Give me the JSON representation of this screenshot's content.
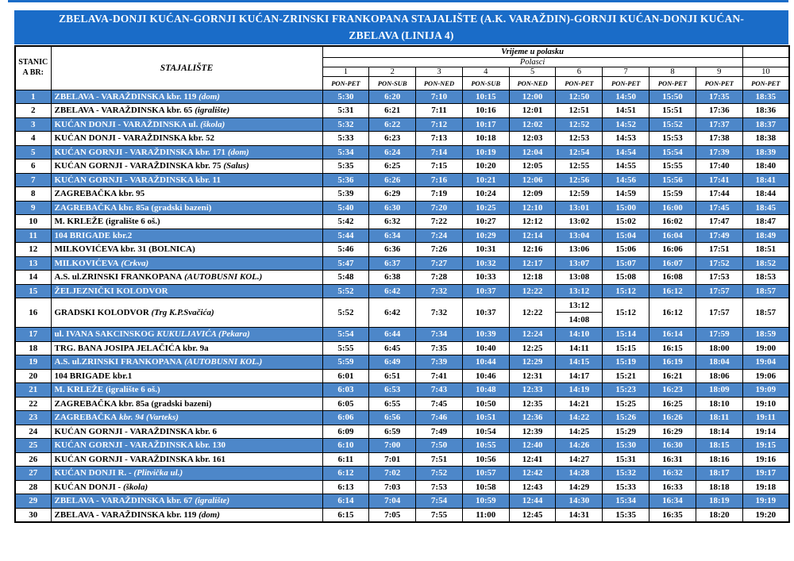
{
  "colors": {
    "title_blue": "#1a6cc8",
    "row_blue": "#4d87c9"
  },
  "title": {
    "line1": "ZBELAVA-DONJI KUĆAN-GORNJI KUĆAN-ZRINSKI FRANKOPANA STAJALIŠTE (A.K. VARAŽDIN)-GORNJI KUĆAN-DONJI KUĆAN-",
    "line2": "ZBELAVA (LINIJA 4)"
  },
  "header": {
    "station_no_label": "STANICA BR:",
    "stop_label": "STAJALIŠTE",
    "time_group_label": "Vrijeme u polasku",
    "departures_label": "Polasci",
    "departure_numbers": [
      "1",
      "2",
      "3",
      "4",
      "5",
      "6",
      "7",
      "8",
      "9",
      "10"
    ],
    "day_types": [
      "PON-PET",
      "PON-SUB",
      "PON-NED",
      "PON-SUB",
      "PON-NED",
      "PON-PET",
      "PON-PET",
      "PON-PET",
      "PON-PET",
      "PON-PET"
    ]
  },
  "table": {
    "rows": [
      {
        "no": "1",
        "name": "ZBELAVA - VARAŽDINSKA kbr. 119",
        "note": "(dom)",
        "times": [
          "5:30",
          "6:20",
          "7:10",
          "10:15",
          "12:00",
          "12:50",
          "14:50",
          "15:50",
          "17:35",
          "18:35"
        ]
      },
      {
        "no": "2",
        "name": "ZBELAVA - VARAŽDINSKA kbr. 65",
        "note": "(igralište)",
        "times": [
          "5:31",
          "6:21",
          "7:11",
          "10:16",
          "12:01",
          "12:51",
          "14:51",
          "15:51",
          "17:36",
          "18:36"
        ]
      },
      {
        "no": "3",
        "name": "KUĆAN DONJI - VARAŽDINSKA ul.",
        "note": "(škola)",
        "times": [
          "5:32",
          "6:22",
          "7:12",
          "10:17",
          "12:02",
          "12:52",
          "14:52",
          "15:52",
          "17:37",
          "18:37"
        ]
      },
      {
        "no": "4",
        "name": "KUĆAN DONJI - VARAŽDINSKA kbr. 52",
        "note": "",
        "times": [
          "5:33",
          "6:23",
          "7:13",
          "10:18",
          "12:03",
          "12:53",
          "14:53",
          "15:53",
          "17:38",
          "18:38"
        ]
      },
      {
        "no": "5",
        "name": "KUĆAN  GORNJI -  VARAŽDINSKA kbr. 171",
        "note": "(dom)",
        "times": [
          "5:34",
          "6:24",
          "7:14",
          "10:19",
          "12:04",
          "12:54",
          "14:54",
          "15:54",
          "17:39",
          "18:39"
        ]
      },
      {
        "no": "6",
        "name": "KUĆAN GORNJI - VARAŽDINSKA kbr. 75",
        "note": "(Salus)",
        "times": [
          "5:35",
          "6:25",
          "7:15",
          "10:20",
          "12:05",
          "12:55",
          "14:55",
          "15:55",
          "17:40",
          "18:40"
        ]
      },
      {
        "no": "7",
        "name": "KUĆAN GORNJI - VARAŽDINSKA kbr. 11",
        "note": "",
        "times": [
          "5:36",
          "6:26",
          "7:16",
          "10:21",
          "12:06",
          "12:56",
          "14:56",
          "15:56",
          "17:41",
          "18:41"
        ]
      },
      {
        "no": "8",
        "name": "ZAGREBAČKA kbr. 95",
        "note": "",
        "times": [
          "5:39",
          "6:29",
          "7:19",
          "10:24",
          "12:09",
          "12:59",
          "14:59",
          "15:59",
          "17:44",
          "18:44"
        ]
      },
      {
        "no": "9",
        "name": "ZAGREBAČKA kbr. 85a (gradski bazeni)",
        "note": "",
        "times": [
          "5:40",
          "6:30",
          "7:20",
          "10:25",
          "12:10",
          "13:01",
          "15:00",
          "16:00",
          "17:45",
          "18:45"
        ]
      },
      {
        "no": "10",
        "name": "M. KRLEŽE  (igralište 6 oš.)",
        "note": "",
        "times": [
          "5:42",
          "6:32",
          "7:22",
          "10:27",
          "12:12",
          "13:02",
          "15:02",
          "16:02",
          "17:47",
          "18:47"
        ]
      },
      {
        "no": "11",
        "name": "104 BRIGADE kbr.2",
        "note": "",
        "times": [
          "5:44",
          "6:34",
          "7:24",
          "10:29",
          "12:14",
          "13:04",
          "15:04",
          "16:04",
          "17:49",
          "18:49"
        ]
      },
      {
        "no": "12",
        "name": "MILKOVIĆEVA kbr. 31 (BOLNICA)",
        "note": "",
        "times": [
          "5:46",
          "6:36",
          "7:26",
          "10:31",
          "12:16",
          "13:06",
          "15:06",
          "16:06",
          "17:51",
          "18:51"
        ]
      },
      {
        "no": "13",
        "name": "MILKOVIĆEVA",
        "note": "(Crkva)",
        "times": [
          "5:47",
          "6:37",
          "7:27",
          "10:32",
          "12:17",
          "13:07",
          "15:07",
          "16:07",
          "17:52",
          "18:52"
        ]
      },
      {
        "no": "14",
        "name": "A.S. ul.ZRINSKI FRANKOPANA",
        "note": "(AUTOBUSNI KOL.)",
        "times": [
          "5:48",
          "6:38",
          "7:28",
          "10:33",
          "12:18",
          "13:08",
          "15:08",
          "16:08",
          "17:53",
          "18:53"
        ]
      },
      {
        "no": "15",
        "name": "ŽELJEZNIČKI KOLODVOR",
        "note": "",
        "times": [
          "5:52",
          "6:42",
          "7:32",
          "10:37",
          "12:22",
          "13:12",
          "15:12",
          "16:12",
          "17:57",
          "18:57"
        ]
      },
      {
        "no": "16",
        "name": "GRADSKI KOLODVOR",
        "note": "(Trg K.P.Svačića)",
        "tall": true,
        "times": [
          "5:52",
          "6:42",
          "7:32",
          "10:37",
          "12:22",
          [
            "13:12",
            "14:08"
          ],
          "15:12",
          "16:12",
          "17:57",
          "18:57"
        ]
      },
      {
        "no": "17",
        "name": "ul. IVANA SAKCINSKOG",
        "note": "KUKULJAVIĆA (Pekara)",
        "times": [
          "5:54",
          "6:44",
          "7:34",
          "10:39",
          "12:24",
          "14:10",
          "15:14",
          "16:14",
          "17:59",
          "18:59"
        ]
      },
      {
        "no": "18",
        "name": "TRG. BANA JOSIPA JELAČIĆA kbr. 9a",
        "note": "",
        "times": [
          "5:55",
          "6:45",
          "7:35",
          "10:40",
          "12:25",
          "14:11",
          "15:15",
          "16:15",
          "18:00",
          "19:00"
        ]
      },
      {
        "no": "19",
        "name": "A.S. ul.ZRINSKI FRANKOPANA",
        "note": "(AUTOBUSNI KOL.)",
        "times": [
          "5:59",
          "6:49",
          "7:39",
          "10:44",
          "12:29",
          "14:15",
          "15:19",
          "16:19",
          "18:04",
          "19:04"
        ]
      },
      {
        "no": "20",
        "name": "104 BRIGADE kbr.1",
        "note": "",
        "times": [
          "6:01",
          "6:51",
          "7:41",
          "10:46",
          "12:31",
          "14:17",
          "15:21",
          "16:21",
          "18:06",
          "19:06"
        ]
      },
      {
        "no": "21",
        "name": "M. KRLEŽE  (igralište 6 oš.)",
        "note": "",
        "times": [
          "6:03",
          "6:53",
          "7:43",
          "10:48",
          "12:33",
          "14:19",
          "15:23",
          "16:23",
          "18:09",
          "19:09"
        ]
      },
      {
        "no": "22",
        "name": "ZAGREBAČKA kbr. 85a (gradski bazeni)",
        "note": "",
        "times": [
          "6:05",
          "6:55",
          "7:45",
          "10:50",
          "12:35",
          "14:21",
          "15:25",
          "16:25",
          "18:10",
          "19:10"
        ]
      },
      {
        "no": "23",
        "name": "ZAGREBAČKA",
        "note": "kbr. 94 (Varteks)",
        "times": [
          "6:06",
          "6:56",
          "7:46",
          "10:51",
          "12:36",
          "14:22",
          "15:26",
          "16:26",
          "18:11",
          "19:11"
        ]
      },
      {
        "no": "24",
        "name": "KUĆAN GORNJI - VARAŽDINSKA kbr. 6",
        "note": "",
        "times": [
          "6:09",
          "6:59",
          "7:49",
          "10:54",
          "12:39",
          "14:25",
          "15:29",
          "16:29",
          "18:14",
          "19:14"
        ]
      },
      {
        "no": "25",
        "name": "KUĆAN GORNJI -  VARAŽDINSKA kbr. 130",
        "note": "",
        "times": [
          "6:10",
          "7:00",
          "7:50",
          "10:55",
          "12:40",
          "14:26",
          "15:30",
          "16:30",
          "18:15",
          "19:15"
        ]
      },
      {
        "no": "26",
        "name": "KUĆAN  GORNJI - VARAŽDINSKA kbr. 161",
        "note": "",
        "times": [
          "6:11",
          "7:01",
          "7:51",
          "10:56",
          "12:41",
          "14:27",
          "15:31",
          "16:31",
          "18:16",
          "19:16"
        ]
      },
      {
        "no": "27",
        "name": "KUĆAN DONJI R. -",
        "note": "(Plitvička ul.)",
        "times": [
          "6:12",
          "7:02",
          "7:52",
          "10:57",
          "12:42",
          "14:28",
          "15:32",
          "16:32",
          "18:17",
          "19:17"
        ]
      },
      {
        "no": "28",
        "name": "KUĆAN DONJI -",
        "note": "(škola)",
        "times": [
          "6:13",
          "7:03",
          "7:53",
          "10:58",
          "12:43",
          "14:29",
          "15:33",
          "16:33",
          "18:18",
          "19:18"
        ]
      },
      {
        "no": "29",
        "name": "ZBELAVA - VARAŽDINSKA kbr. 67",
        "note": "(igralište)",
        "times": [
          "6:14",
          "7:04",
          "7:54",
          "10:59",
          "12:44",
          "14:30",
          "15:34",
          "16:34",
          "18:19",
          "19:19"
        ]
      },
      {
        "no": "30",
        "name": "ZBELAVA - VARAŽDINSKA kbr. 119",
        "note": "(dom)",
        "times": [
          "6:15",
          "7:05",
          "7:55",
          "11:00",
          "12:45",
          "14:31",
          "15:35",
          "16:35",
          "18:20",
          "19:20"
        ]
      }
    ]
  }
}
